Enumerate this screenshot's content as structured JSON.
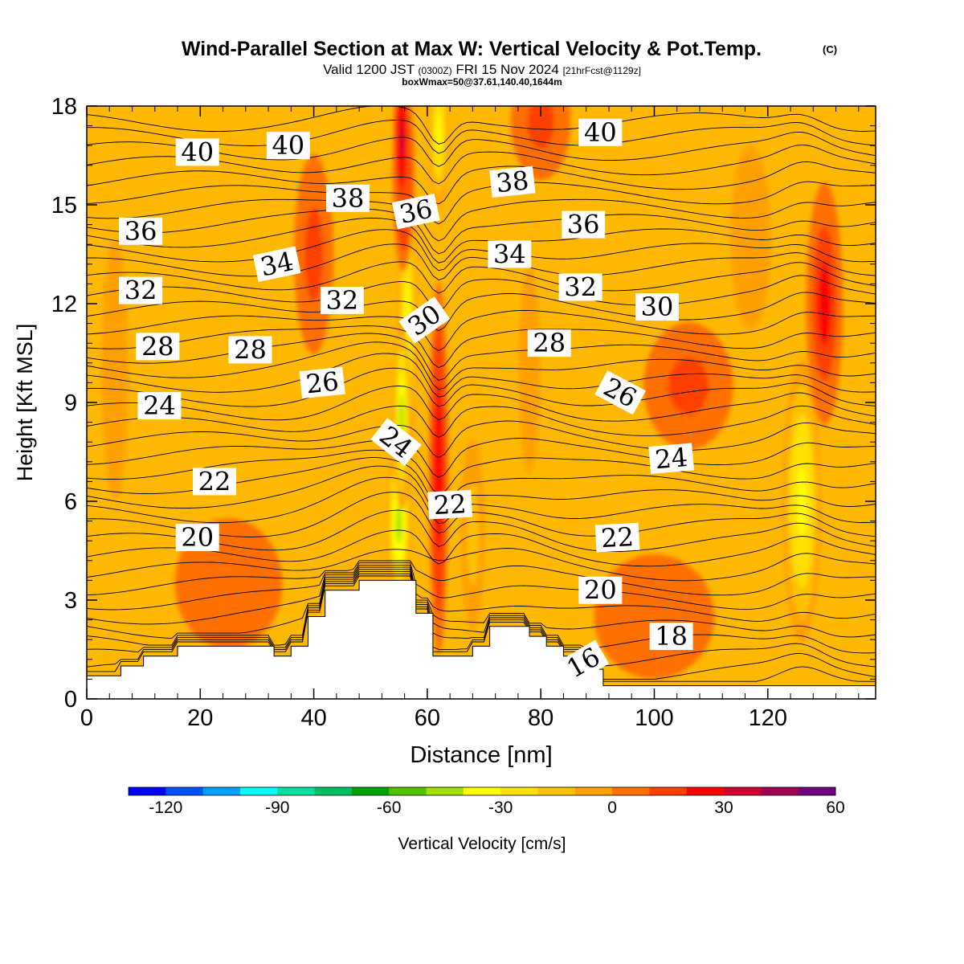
{
  "chart_data": {
    "type": "heatmap",
    "title": "Wind-Parallel Section at Max W: Vertical Velocity & Pot.Temp.",
    "title_mark": "(C)",
    "subtitle_parts": [
      "Valid 1200 JST",
      "(0300Z)",
      "FRI 15 Nov 2024",
      "[21hrFcst@1129z]"
    ],
    "subtitle2": "boxWmax=50@37.61,140.40,1644m",
    "xlabel": "Distance [nm]",
    "ylabel": "Height [Kft MSL]",
    "xlim": [
      0,
      139
    ],
    "ylim": [
      0,
      18
    ],
    "x_ticks": [
      "0",
      "20",
      "40",
      "60",
      "80",
      "100",
      "120"
    ],
    "y_ticks": [
      "0",
      "3",
      "6",
      "9",
      "12",
      "15",
      "18"
    ],
    "colorbar": {
      "label": "Vertical Velocity [cm/s]",
      "ticks": [
        "-120",
        "-90",
        "-60",
        "-30",
        "0",
        "30",
        "60"
      ],
      "levels_min": -130,
      "level_step": 10,
      "colors": [
        "#0000ff",
        "#0050ff",
        "#00a0ff",
        "#00ffff",
        "#00e0a0",
        "#00c060",
        "#00a000",
        "#50c000",
        "#a0e000",
        "#ffff00",
        "#ffe000",
        "#ffc000",
        "#ffa000",
        "#ff7000",
        "#ff4000",
        "#ff0000",
        "#d00030",
        "#a00050",
        "#700080"
      ]
    },
    "background_fill": "#ffb800",
    "terrain": [
      [
        0,
        0.7
      ],
      [
        6,
        0.7
      ],
      [
        6,
        1.0
      ],
      [
        10,
        1.0
      ],
      [
        10,
        1.3
      ],
      [
        16,
        1.3
      ],
      [
        16,
        1.6
      ],
      [
        33,
        1.6
      ],
      [
        33,
        1.3
      ],
      [
        36,
        1.3
      ],
      [
        36,
        1.6
      ],
      [
        39,
        1.6
      ],
      [
        39,
        2.5
      ],
      [
        42,
        2.5
      ],
      [
        42,
        3.3
      ],
      [
        48,
        3.3
      ],
      [
        48,
        3.6
      ],
      [
        58,
        3.6
      ],
      [
        58,
        2.6
      ],
      [
        61,
        2.6
      ],
      [
        61,
        1.3
      ],
      [
        68,
        1.3
      ],
      [
        68,
        1.6
      ],
      [
        71,
        1.6
      ],
      [
        71,
        2.2
      ],
      [
        78,
        2.2
      ],
      [
        78,
        1.9
      ],
      [
        81,
        1.9
      ],
      [
        81,
        1.6
      ],
      [
        84,
        1.6
      ],
      [
        84,
        1.3
      ],
      [
        88,
        1.3
      ],
      [
        88,
        0.9
      ],
      [
        91,
        0.9
      ],
      [
        91,
        0.4
      ],
      [
        139,
        0.4
      ]
    ],
    "w_features": [
      {
        "x": 56.5,
        "y": 11.5,
        "dx": 1.8,
        "dy": 4.5,
        "w": -32
      },
      {
        "x": 55.0,
        "y": 5.3,
        "dx": 2.2,
        "dy": 2.6,
        "w": -45
      },
      {
        "x": 55.5,
        "y": 8.6,
        "dx": 1.6,
        "dy": 3.0,
        "w": -40
      },
      {
        "x": 62.0,
        "y": 17.2,
        "dx": 1.8,
        "dy": 2.4,
        "w": -35
      },
      {
        "x": 55.8,
        "y": 16.0,
        "dx": 2.0,
        "dy": 3.2,
        "w": 30
      },
      {
        "x": 62.0,
        "y": 7.0,
        "dx": 1.8,
        "dy": 6.0,
        "w": 28
      },
      {
        "x": 55.5,
        "y": 17.0,
        "dx": 1.5,
        "dy": 2.5,
        "w": 35
      },
      {
        "x": 126.0,
        "y": 6.0,
        "dx": 3.5,
        "dy": 4.5,
        "w": -35
      },
      {
        "x": 130.0,
        "y": 12.0,
        "dx": 3.5,
        "dy": 4.0,
        "w": 20
      },
      {
        "x": 106.0,
        "y": 9.5,
        "dx": 9.0,
        "dy": 2.2,
        "w": 13
      },
      {
        "x": 40.0,
        "y": 13.5,
        "dx": 4.0,
        "dy": 3.5,
        "w": 12
      },
      {
        "x": 80.0,
        "y": 17.5,
        "dx": 6.0,
        "dy": 2.0,
        "w": 13
      },
      {
        "x": 25.0,
        "y": 3.5,
        "dx": 12.0,
        "dy": 2.5,
        "w": 8
      },
      {
        "x": 100.0,
        "y": 2.5,
        "dx": 14.0,
        "dy": 2.5,
        "w": 7
      },
      {
        "x": 5.0,
        "y": 10.0,
        "dx": 3.0,
        "dy": 5.0,
        "w": -8
      },
      {
        "x": 78.0,
        "y": 10.0,
        "dx": 3.0,
        "dy": 5.0,
        "w": -5
      },
      {
        "x": 117.0,
        "y": 14.0,
        "dx": 5.0,
        "dy": 4.0,
        "w": -6
      },
      {
        "x": 68.0,
        "y": 5.0,
        "dx": 2.5,
        "dy": 3.5,
        "w": -10
      }
    ],
    "isentrope_labels": [
      {
        "text": "40",
        "x": 19.5,
        "y": 16.6,
        "angle": 0
      },
      {
        "text": "40",
        "x": 35.5,
        "y": 16.8,
        "angle": 0
      },
      {
        "text": "38",
        "x": 46.0,
        "y": 15.2,
        "angle": 0
      },
      {
        "text": "36",
        "x": 58.0,
        "y": 14.8,
        "angle": -12
      },
      {
        "text": "38",
        "x": 75.0,
        "y": 15.7,
        "angle": -6
      },
      {
        "text": "40",
        "x": 90.5,
        "y": 17.2,
        "angle": 0
      },
      {
        "text": "36",
        "x": 9.5,
        "y": 14.2,
        "angle": 0
      },
      {
        "text": "34",
        "x": 33.5,
        "y": 13.2,
        "angle": -12
      },
      {
        "text": "34",
        "x": 74.5,
        "y": 13.5,
        "angle": 0
      },
      {
        "text": "36",
        "x": 87.5,
        "y": 14.4,
        "angle": 0
      },
      {
        "text": "32",
        "x": 9.5,
        "y": 12.4,
        "angle": 0
      },
      {
        "text": "32",
        "x": 45.0,
        "y": 12.1,
        "angle": 0
      },
      {
        "text": "30",
        "x": 59.5,
        "y": 11.5,
        "angle": -35
      },
      {
        "text": "32",
        "x": 87.0,
        "y": 12.5,
        "angle": 0
      },
      {
        "text": "30",
        "x": 100.5,
        "y": 11.9,
        "angle": 0
      },
      {
        "text": "28",
        "x": 12.5,
        "y": 10.7,
        "angle": 0
      },
      {
        "text": "28",
        "x": 28.8,
        "y": 10.6,
        "angle": 0
      },
      {
        "text": "26",
        "x": 41.5,
        "y": 9.6,
        "angle": -6
      },
      {
        "text": "28",
        "x": 81.5,
        "y": 10.8,
        "angle": 0
      },
      {
        "text": "26",
        "x": 94.0,
        "y": 9.3,
        "angle": 28
      },
      {
        "text": "24",
        "x": 12.8,
        "y": 8.9,
        "angle": 0
      },
      {
        "text": "24",
        "x": 54.5,
        "y": 7.8,
        "angle": 38
      },
      {
        "text": "24",
        "x": 103.0,
        "y": 7.3,
        "angle": -5
      },
      {
        "text": "22",
        "x": 22.5,
        "y": 6.6,
        "angle": 0
      },
      {
        "text": "22",
        "x": 64.0,
        "y": 5.9,
        "angle": -3
      },
      {
        "text": "22",
        "x": 93.5,
        "y": 4.9,
        "angle": -3
      },
      {
        "text": "20",
        "x": 19.5,
        "y": 4.9,
        "angle": 0
      },
      {
        "text": "20",
        "x": 90.5,
        "y": 3.3,
        "angle": 0
      },
      {
        "text": "18",
        "x": 103.0,
        "y": 1.9,
        "angle": 0
      },
      {
        "text": "16",
        "x": 87.5,
        "y": 1.1,
        "angle": -30
      }
    ]
  }
}
